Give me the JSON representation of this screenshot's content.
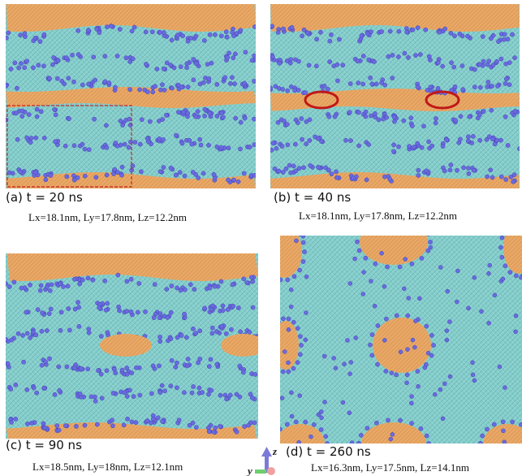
{
  "panels": [
    {
      "label": "(a) t = 20 ns",
      "caption": "Lx=18.1nm, Ly=17.8nm, Lz=12.2nm"
    },
    {
      "label": "(b) t = 40 ns",
      "caption": "Lx=18.1nm, Ly=17.8nm, Lz=12.2nm"
    },
    {
      "label": "(c)  t = 90 ns",
      "caption": "Lx=18.5nm, Ly=18nm, Lz=12.1nm"
    },
    {
      "label": "(d) t = 260 ns",
      "caption": "Lx=16.3nm, Ly=17.5nm, Lz=14.1nm"
    }
  ],
  "axes": {
    "z": "z",
    "y": "y"
  }
}
